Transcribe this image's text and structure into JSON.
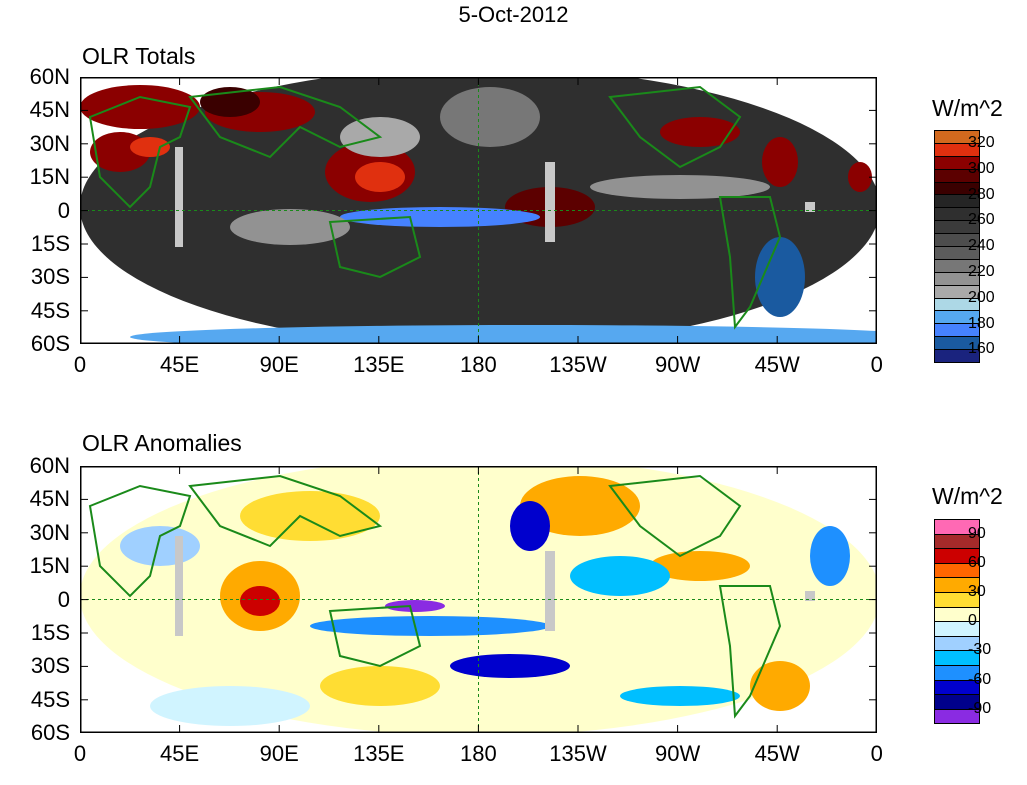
{
  "title": "5-Oct-2012",
  "panels": [
    {
      "subtitle": "OLR Totals",
      "units": "W/m^2",
      "legend_labels": [
        "320",
        "300",
        "280",
        "260",
        "240",
        "220",
        "200",
        "180",
        "160"
      ],
      "legend_colors": [
        "#d2691e",
        "#e0300f",
        "#8b0000",
        "#5c0000",
        "#3a0000",
        "#252525",
        "#2f2f2f",
        "#3b3b3b",
        "#4d4d4d",
        "#5c5c5c",
        "#777777",
        "#929292",
        "#a9a9a9",
        "#add8e6",
        "#56a8f0",
        "#4682ff",
        "#1a5aa0",
        "#1a237e"
      ],
      "base_color": "#3a3a3a"
    },
    {
      "subtitle": "OLR Anomalies",
      "units": "W/m^2",
      "legend_labels": [
        "90",
        "60",
        "30",
        "0",
        "-30",
        "-60",
        "-90"
      ],
      "legend_colors": [
        "#ff69b4",
        "#a52a2a",
        "#cc0000",
        "#ff6600",
        "#ffaa00",
        "#ffdd33",
        "#ffffcc",
        "#d0f4ff",
        "#a0d0ff",
        "#00bfff",
        "#1e90ff",
        "#0000cd",
        "#00008b",
        "#8a2be2"
      ],
      "base_color": "#ffffcc"
    }
  ],
  "y_ticks": [
    "60N",
    "45N",
    "30N",
    "15N",
    "0",
    "15S",
    "30S",
    "45S",
    "60S"
  ],
  "x_ticks": [
    "0",
    "45E",
    "90E",
    "135E",
    "180",
    "135W",
    "90W",
    "45W",
    "0"
  ]
}
